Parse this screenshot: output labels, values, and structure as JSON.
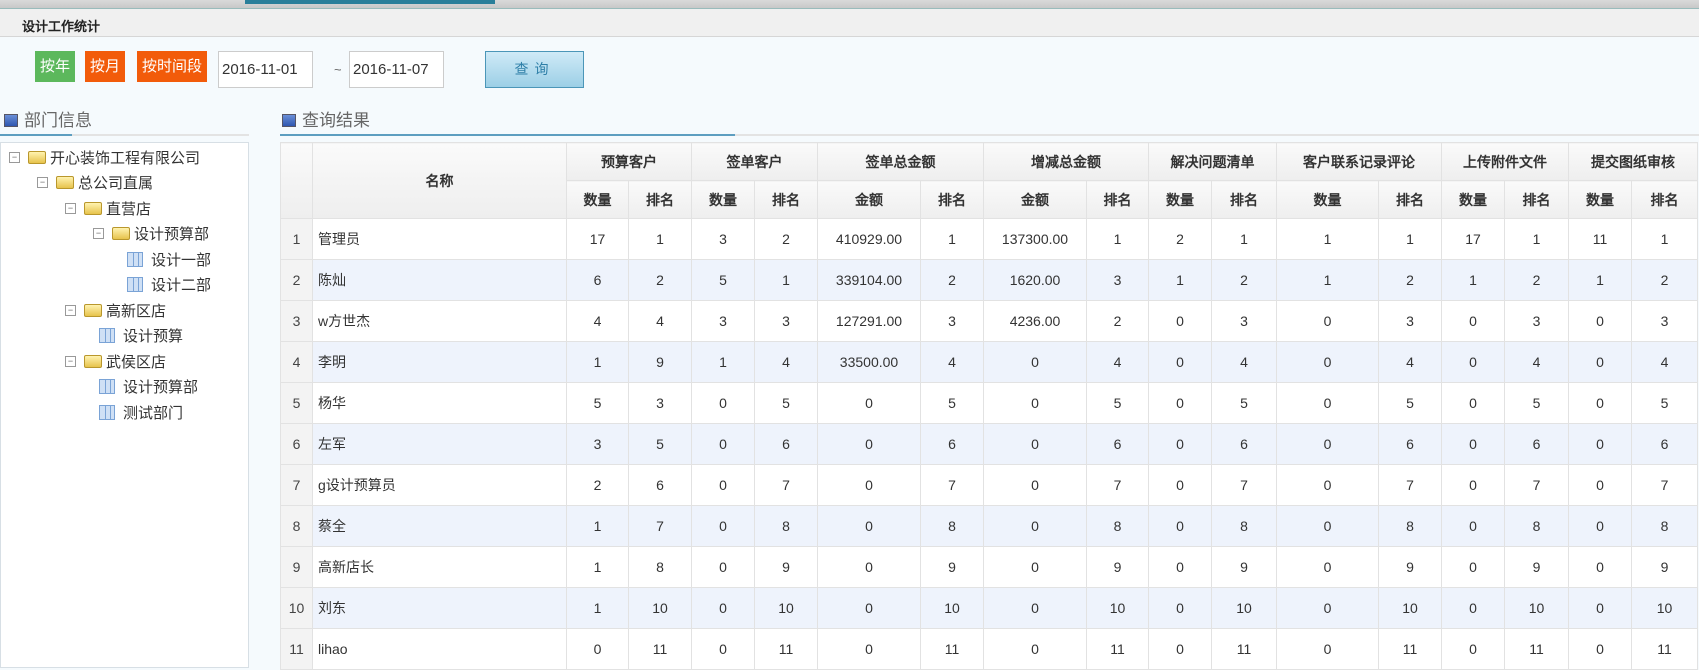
{
  "page": {
    "title": "设计工作统计"
  },
  "toolbar": {
    "by_year": "按年",
    "by_month": "按月",
    "by_period": "按时间段",
    "start_date": "2016-11-01",
    "separator": "~",
    "end_date": "2016-11-07",
    "query": "查询",
    "colors": {
      "by_year": "#5cb85c",
      "by_month": "#f25b0a",
      "by_period": "#f25b0a"
    }
  },
  "dept": {
    "title": "部门信息",
    "tree": [
      {
        "label": "开心装饰工程有限公司",
        "type": "folder"
      },
      {
        "label": "总公司直属",
        "type": "folder"
      },
      {
        "label": "直营店",
        "type": "folder"
      },
      {
        "label": "设计预算部",
        "type": "folder"
      },
      {
        "label": "设计一部",
        "type": "leaf"
      },
      {
        "label": "设计二部",
        "type": "leaf"
      },
      {
        "label": "高新区店",
        "type": "folder"
      },
      {
        "label": "设计预算",
        "type": "leaf"
      },
      {
        "label": "武侯区店",
        "type": "folder"
      },
      {
        "label": "设计预算部",
        "type": "leaf"
      },
      {
        "label": "测试部门",
        "type": "leaf"
      }
    ]
  },
  "results": {
    "title": "查询结果",
    "name_header": "名称",
    "groups": [
      "预算客户",
      "签单客户",
      "签单总金额",
      "增减总金额",
      "解决问题清单",
      "客户联系记录评论",
      "上传附件文件",
      "提交图纸审核"
    ],
    "subheaders": [
      [
        "数量",
        "排名"
      ],
      [
        "数量",
        "排名"
      ],
      [
        "金额",
        "排名"
      ],
      [
        "金额",
        "排名"
      ],
      [
        "数量",
        "排名"
      ],
      [
        "数量",
        "排名"
      ],
      [
        "数量",
        "排名"
      ],
      [
        "数量",
        "排名"
      ]
    ],
    "rows": [
      [
        "1",
        "管理员",
        "17",
        "1",
        "3",
        "2",
        "410929.00",
        "1",
        "137300.00",
        "1",
        "2",
        "1",
        "1",
        "1",
        "17",
        "1",
        "11",
        "1"
      ],
      [
        "2",
        "陈灿",
        "6",
        "2",
        "5",
        "1",
        "339104.00",
        "2",
        "1620.00",
        "3",
        "1",
        "2",
        "1",
        "2",
        "1",
        "2",
        "1",
        "2"
      ],
      [
        "3",
        "w方世杰",
        "4",
        "4",
        "3",
        "3",
        "127291.00",
        "3",
        "4236.00",
        "2",
        "0",
        "3",
        "0",
        "3",
        "0",
        "3",
        "0",
        "3"
      ],
      [
        "4",
        "李明",
        "1",
        "9",
        "1",
        "4",
        "33500.00",
        "4",
        "0",
        "4",
        "0",
        "4",
        "0",
        "4",
        "0",
        "4",
        "0",
        "4"
      ],
      [
        "5",
        "杨华",
        "5",
        "3",
        "0",
        "5",
        "0",
        "5",
        "0",
        "5",
        "0",
        "5",
        "0",
        "5",
        "0",
        "5",
        "0",
        "5"
      ],
      [
        "6",
        "左军",
        "3",
        "5",
        "0",
        "6",
        "0",
        "6",
        "0",
        "6",
        "0",
        "6",
        "0",
        "6",
        "0",
        "6",
        "0",
        "6"
      ],
      [
        "7",
        "g设计预算员",
        "2",
        "6",
        "0",
        "7",
        "0",
        "7",
        "0",
        "7",
        "0",
        "7",
        "0",
        "7",
        "0",
        "7",
        "0",
        "7"
      ],
      [
        "8",
        "蔡全",
        "1",
        "7",
        "0",
        "8",
        "0",
        "8",
        "0",
        "8",
        "0",
        "8",
        "0",
        "8",
        "0",
        "8",
        "0",
        "8"
      ],
      [
        "9",
        "高新店长",
        "1",
        "8",
        "0",
        "9",
        "0",
        "9",
        "0",
        "9",
        "0",
        "9",
        "0",
        "9",
        "0",
        "9",
        "0",
        "9"
      ],
      [
        "10",
        "刘东",
        "1",
        "10",
        "0",
        "10",
        "0",
        "10",
        "0",
        "10",
        "0",
        "10",
        "0",
        "10",
        "0",
        "10",
        "0",
        "10"
      ],
      [
        "11",
        "lihao",
        "0",
        "11",
        "0",
        "11",
        "0",
        "11",
        "0",
        "11",
        "0",
        "11",
        "0",
        "11",
        "0",
        "11",
        "0",
        "11"
      ]
    ]
  }
}
